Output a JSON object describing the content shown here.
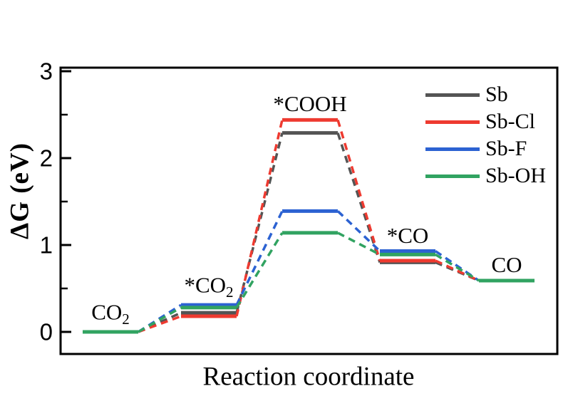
{
  "figure": {
    "description": "Gibbs free energy diagram for CO2 reduction to CO on Sb-based catalysts"
  },
  "chart_data": {
    "type": "line",
    "subtype": "reaction-energy-diagram",
    "title": "",
    "xlabel": "Reaction coordinate",
    "ylabel": "ΔG (eV)",
    "ylim": [
      -0.25,
      3.05
    ],
    "yticks": [
      0,
      1,
      2,
      3
    ],
    "yticks_minor": [
      0.5,
      1.5,
      2.5
    ],
    "grid": false,
    "legend_position": "top-right",
    "axis_color": "#000000",
    "categories": [
      "CO2",
      "*CO2",
      "*COOH",
      "*CO",
      "CO"
    ],
    "stage_labels": [
      {
        "text": "CO",
        "sub": "2"
      },
      {
        "text": "*CO",
        "sub": "2"
      },
      {
        "text": "*COOH",
        "sub": ""
      },
      {
        "text": "*CO",
        "sub": ""
      },
      {
        "text": "CO",
        "sub": ""
      }
    ],
    "series": [
      {
        "name": "Sb",
        "color": "#545454",
        "values": [
          0.0,
          0.22,
          2.29,
          0.8,
          0.59
        ]
      },
      {
        "name": "Sb-Cl",
        "color": "#ee3a30",
        "values": [
          0.0,
          0.18,
          2.44,
          0.82,
          0.59
        ]
      },
      {
        "name": "Sb-F",
        "color": "#2c62d2",
        "values": [
          0.0,
          0.31,
          1.39,
          0.93,
          0.59
        ]
      },
      {
        "name": "Sb-OH",
        "color": "#31a361",
        "values": [
          0.0,
          0.28,
          1.14,
          0.89,
          0.59
        ]
      }
    ],
    "line_styles": {
      "level": "solid",
      "connector": "dashed"
    }
  }
}
